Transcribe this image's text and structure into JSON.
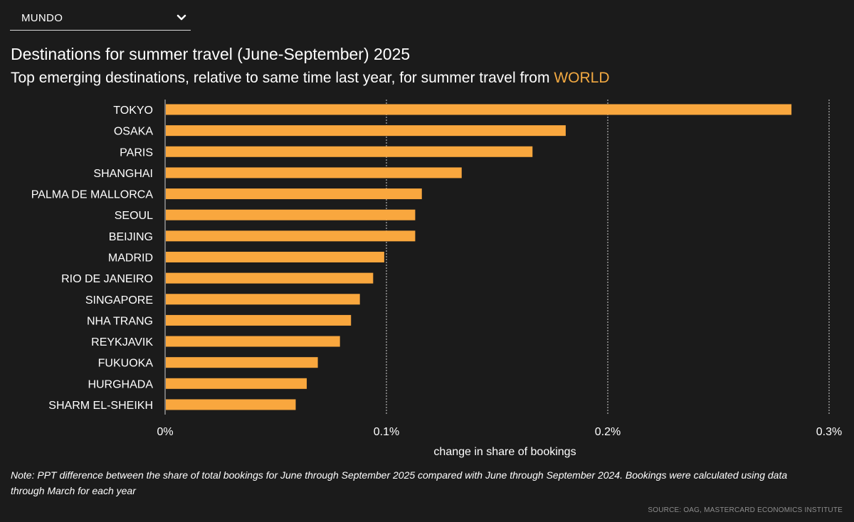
{
  "dropdown": {
    "selected": "MUNDO"
  },
  "header": {
    "title": "Destinations for summer travel (June-September) 2025",
    "subtitle_prefix": "Top emerging destinations, relative to same time last year, for summer travel from ",
    "subtitle_highlight": "WORLD"
  },
  "colors": {
    "background": "#1b1b1b",
    "bar": "#f9a73e",
    "highlight": "#f2a942",
    "text": "#ffffff",
    "axis": "#cfcfcf",
    "source": "#8d8d8d"
  },
  "chart_data": {
    "type": "bar",
    "orientation": "horizontal",
    "categories": [
      "TOKYO",
      "OSAKA",
      "PARIS",
      "SHANGHAI",
      "PALMA DE MALLORCA",
      "SEOUL",
      "BEIJING",
      "MADRID",
      "RIO DE JANEIRO",
      "SINGAPORE",
      "NHA TRANG",
      "REYKJAVIK",
      "FUKUOKA",
      "HURGHADA",
      "SHARM EL-SHEIKH"
    ],
    "values": [
      0.283,
      0.181,
      0.166,
      0.134,
      0.116,
      0.113,
      0.113,
      0.099,
      0.094,
      0.088,
      0.084,
      0.079,
      0.069,
      0.064,
      0.059
    ],
    "xlim": [
      0,
      0.3
    ],
    "ticks": [
      {
        "value": 0,
        "label": "0%"
      },
      {
        "value": 0.1,
        "label": "0.1%"
      },
      {
        "value": 0.2,
        "label": "0.2%"
      },
      {
        "value": 0.3,
        "label": "0.3%"
      }
    ],
    "xlabel": "change in share of bookings",
    "ylabel": "",
    "grid": true
  },
  "footer": {
    "note": "Note: PPT difference between the share of total bookings for June through September 2025 compared with June through September 2024. Bookings were calculated using data through March for each year",
    "source": "SOURCE: OAG, MASTERCARD ECONOMICS INSTITUTE"
  }
}
